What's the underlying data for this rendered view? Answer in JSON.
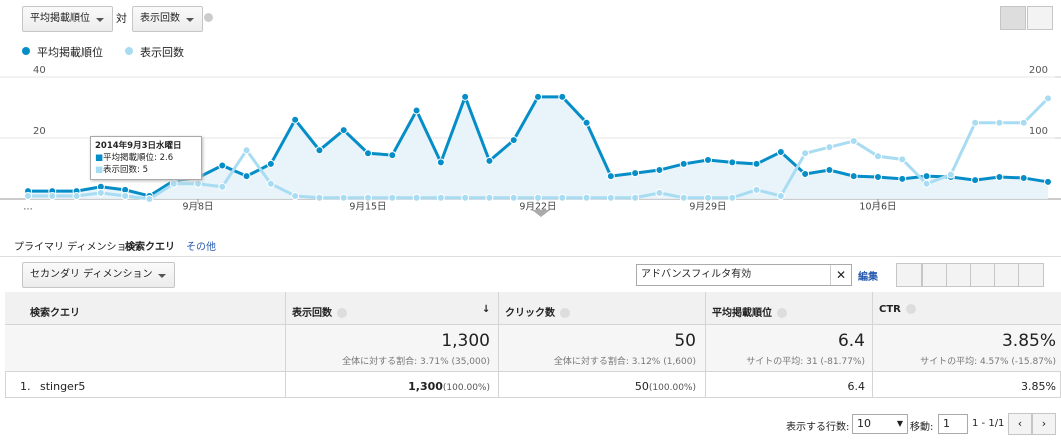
{
  "toolbar": {
    "metric1": "平均掲載順位",
    "vs": "対",
    "metric2": "表示回数"
  },
  "chart_data": {
    "type": "line",
    "categories": [
      "…",
      null,
      null,
      null,
      null,
      null,
      null,
      "9月8日",
      null,
      null,
      null,
      null,
      null,
      null,
      "9月15日",
      null,
      null,
      null,
      null,
      null,
      null,
      "9月22日",
      null,
      null,
      null,
      null,
      null,
      null,
      "9月29日",
      null,
      null,
      null,
      null,
      null,
      null,
      "10月6日",
      null,
      null,
      null,
      null,
      null,
      null,
      null
    ],
    "series": [
      {
        "name": "平均掲載順位",
        "color": "#058dc7",
        "axis": "y",
        "values": [
          2.6,
          2.6,
          2.6,
          4,
          3,
          1,
          6,
          7,
          11,
          7.5,
          11.5,
          26,
          16,
          22.6,
          15,
          14.4,
          29,
          12,
          33.5,
          12.5,
          19.3,
          33.5,
          33.5,
          25,
          7.5,
          8.5,
          9.5,
          11.5,
          12.8,
          12,
          11.5,
          15.4,
          8.2,
          9.5,
          7.5,
          7.2,
          6.6,
          7.5,
          7.2,
          6.2,
          7.2,
          6.9,
          5.6
        ]
      },
      {
        "name": "表示回数",
        "color": "#a8dcf2",
        "axis": "y2",
        "values": [
          5,
          5,
          5,
          10,
          5,
          0,
          25,
          25,
          20,
          80,
          25,
          5,
          2,
          2,
          2,
          2,
          2,
          2,
          2,
          2,
          2,
          2,
          2,
          2,
          2,
          2,
          10,
          2,
          2,
          2,
          15,
          5,
          75,
          85,
          95,
          70,
          65,
          25,
          40,
          125,
          125,
          125,
          165
        ]
      }
    ],
    "ylim": [
      0,
      40
    ],
    "yticks": [
      20,
      40
    ],
    "y2lim": [
      0,
      200
    ],
    "y2ticks": [
      100,
      200
    ],
    "tooltip_title": "2014年9月3日水曜日"
  },
  "dimension": {
    "label": "プライマリ ディメンション:",
    "value": "検索クエリ",
    "other": "その他"
  },
  "secondary": "セカンダリ ディメンション",
  "filter": {
    "text": "アドバンスフィルタ有効",
    "edit": "編集"
  },
  "table": {
    "columns": [
      "検索クエリ",
      "表示回数",
      "クリック数",
      "平均掲載順位",
      "CTR"
    ],
    "totals": [
      {
        "value": "1,300",
        "note": "全体に対する割合: 3.71% (35,000)"
      },
      {
        "value": "50",
        "note": "全体に対する割合: 3.12% (1,600)"
      },
      {
        "value": "6.4",
        "note": "サイトの平均: 31 (-81.77%)"
      },
      {
        "value": "3.85%",
        "note": "サイトの平均: 4.57% (-15.87%)"
      }
    ],
    "rows": [
      {
        "index": "1.",
        "query": "stinger5",
        "cells": [
          {
            "value": "1,300",
            "share": "(100.00%)"
          },
          {
            "value": "50",
            "share": "(100.00%)"
          },
          {
            "value": "6.4"
          },
          {
            "value": "3.85%"
          }
        ]
      }
    ]
  },
  "pager": {
    "rows_label": "表示する行数:",
    "rows": "10",
    "goto_label": "移動:",
    "goto": "1",
    "range": "1 - 1/1"
  }
}
